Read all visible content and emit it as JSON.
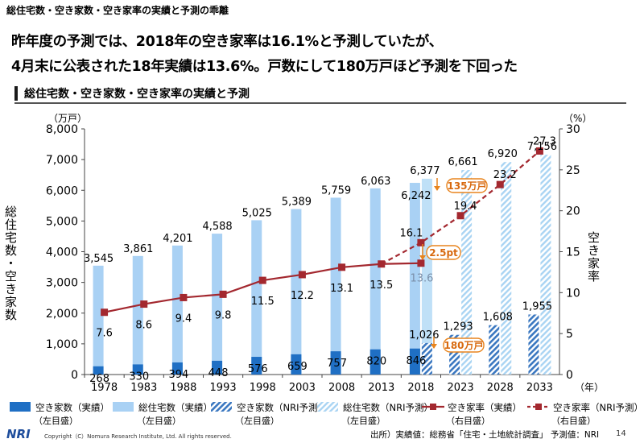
{
  "topline": "総住宅数・空き家数・空き家率の実績と予測の乖離",
  "headline": {
    "line1": "昨年度の予測では、2018年の空き家率は16.1%と予測していたが、",
    "line2": "4月末に公表された18年実績は13.6%。戸数にして180万戸ほど予測を下回った"
  },
  "subhead": "総住宅数・空き家数・空き家率の実績と予測",
  "chart_data": {
    "type": "bar",
    "categories": [
      "1978",
      "1983",
      "1988",
      "1993",
      "1998",
      "2003",
      "2008",
      "2013",
      "2018",
      "2023",
      "2028",
      "2033"
    ],
    "left_axis": {
      "unit_label": "（万戸）",
      "title": "総住宅数・空き家数",
      "ylim": [
        0,
        8000
      ],
      "ticks": [
        "0",
        "1,000",
        "2,000",
        "3,000",
        "4,000",
        "5,000",
        "6,000",
        "7,000",
        "8,000"
      ]
    },
    "right_axis": {
      "unit_label": "（%）",
      "title": "空き家率",
      "ylim": [
        0,
        30
      ],
      "ticks": [
        "0",
        "5",
        "10",
        "15",
        "20",
        "25",
        "30"
      ]
    },
    "x_unit_label": "（年）",
    "colors": {
      "vacant_actual": "#1f6fc4",
      "total_actual": "#a9d1f4",
      "vacant_nri": "#3a77c0",
      "total_nri": "#bfe0f7",
      "rate": "#a3282f",
      "callout": "#e8841d"
    },
    "series": [
      {
        "name": "空き家数（実績）",
        "axis": "left",
        "values": [
          268,
          330,
          394,
          448,
          576,
          659,
          757,
          820,
          846,
          null,
          null,
          null
        ],
        "labels": [
          "268",
          "330",
          "394",
          "448",
          "576",
          "659",
          "757",
          "820",
          "846",
          "",
          "",
          ""
        ]
      },
      {
        "name": "総住宅数（実績）",
        "axis": "left",
        "values": [
          3545,
          3861,
          4201,
          4588,
          5025,
          5389,
          5759,
          6063,
          6242,
          null,
          null,
          null
        ],
        "labels": [
          "3,545",
          "3,861",
          "4,201",
          "4,588",
          "5,025",
          "5,389",
          "5,759",
          "6,063",
          "6,242",
          "",
          "",
          ""
        ]
      },
      {
        "name": "空き家数（NRI予測）",
        "axis": "left",
        "values": [
          null,
          null,
          null,
          null,
          null,
          null,
          null,
          null,
          1026,
          1293,
          1608,
          1955
        ],
        "labels": [
          "",
          "",
          "",
          "",
          "",
          "",
          "",
          "",
          "1,026",
          "1,293",
          "1,608",
          "1,955"
        ]
      },
      {
        "name": "総住宅数（NRI予測）",
        "axis": "left",
        "values": [
          null,
          null,
          null,
          null,
          null,
          null,
          null,
          null,
          6377,
          6661,
          6920,
          7156
        ],
        "labels": [
          "",
          "",
          "",
          "",
          "",
          "",
          "",
          "",
          "6,377",
          "6,661",
          "6,920",
          "7,156"
        ]
      },
      {
        "name": "空き家率（実績）",
        "axis": "right",
        "values": [
          7.6,
          8.6,
          9.4,
          9.8,
          11.5,
          12.2,
          13.1,
          13.5,
          13.6,
          null,
          null,
          null
        ],
        "labels": [
          "7.6",
          "8.6",
          "9.4",
          "9.8",
          "11.5",
          "12.2",
          "13.1",
          "13.5",
          "13.6",
          "",
          "",
          ""
        ]
      },
      {
        "name": "空き家率（NRI予測）",
        "axis": "right",
        "values": [
          null,
          null,
          null,
          null,
          null,
          null,
          null,
          13.5,
          16.1,
          19.4,
          23.2,
          27.3
        ],
        "labels": [
          "",
          "",
          "",
          "",
          "",
          "",
          "",
          "",
          "16.1",
          "19.4",
          "23.2",
          "27.3"
        ]
      }
    ],
    "callouts": [
      {
        "text": "135万戸",
        "between": "総住宅数 2018"
      },
      {
        "text": "2.5pt",
        "between": "空き家率 2018"
      },
      {
        "text": "180万戸",
        "between": "空き家数 2018"
      }
    ]
  },
  "legend": [
    {
      "label": "空き家数（実績）",
      "sub": "（左目盛）",
      "style": "vacant_actual"
    },
    {
      "label": "総住宅数（実績）",
      "sub": "（左目盛）",
      "style": "total_actual"
    },
    {
      "label": "空き家数（NRI予測）",
      "sub": "（左目盛）",
      "style": "vacant_nri"
    },
    {
      "label": "総住宅数（NRI予測）",
      "sub": "（左目盛）",
      "style": "total_nri"
    },
    {
      "label": "空き家率（実績）",
      "sub": "（右目盛）",
      "style": "rate_actual"
    },
    {
      "label": "空き家率（NRI予測）",
      "sub": "（右目盛）",
      "style": "rate_nri"
    }
  ],
  "footer": {
    "logo": "NRI",
    "copyright": "Copyright（C）Nomura Research Institute, Ltd. All rights reserved.",
    "source": "出所）実績値：総務省「住宅・土地統計調査」 予測値：NRI",
    "page": "14"
  }
}
